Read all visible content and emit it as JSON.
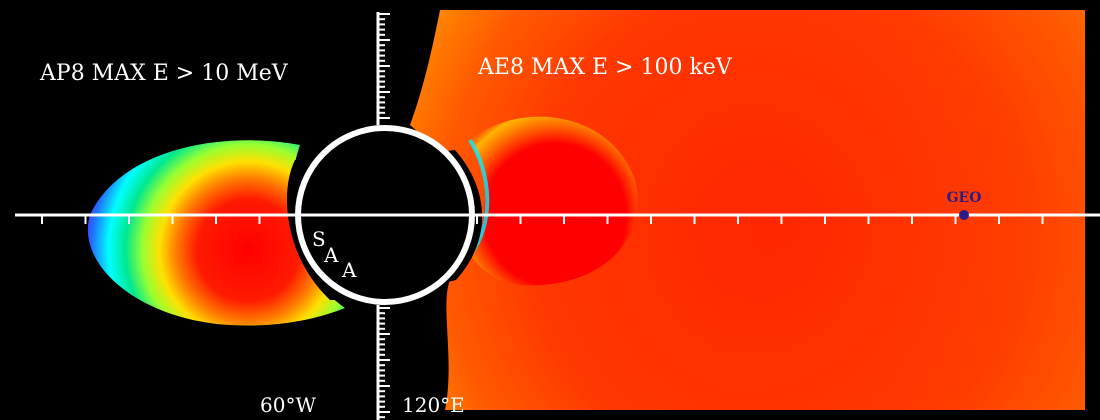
{
  "labels": {
    "left_title": "AP8 MAX  E > 10 MeV",
    "right_title": "AE8 MAX  E > 100 keV",
    "saa_s": "S",
    "saa_a1": "A",
    "saa_a2": "A",
    "geo": "GEO",
    "lon_west": "60°W",
    "lon_east": "120°E"
  },
  "colors": {
    "background": "#000000",
    "axis": "#ffffff",
    "geo_marker": "#2a1a8a",
    "flux_scale": [
      "#ff0000",
      "#ff5000",
      "#ff9a00",
      "#ffff00",
      "#80ff40",
      "#00e0a0",
      "#00ffff",
      "#2060ff",
      "#6010ff"
    ]
  }
}
